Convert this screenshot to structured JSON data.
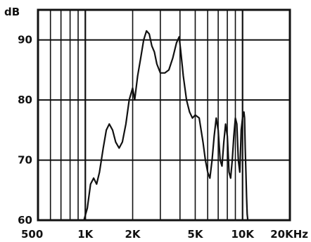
{
  "chart_data": {
    "type": "line",
    "title": "",
    "xlabel": "",
    "ylabel": "",
    "x_scale": "log",
    "xlim": [
      500,
      20000
    ],
    "ylim": [
      60,
      95
    ],
    "grid": true,
    "legend": "none",
    "y_unit": "dB",
    "y_ticks": [
      60,
      70,
      80,
      90
    ],
    "x_ticks": [
      {
        "value": 500,
        "label": "500"
      },
      {
        "value": 1000,
        "label": "1K"
      },
      {
        "value": 2000,
        "label": "2K"
      },
      {
        "value": 5000,
        "label": "5K"
      },
      {
        "value": 10000,
        "label": "10K"
      },
      {
        "value": 20000,
        "label": "20KHz"
      }
    ],
    "colors": {
      "line": "#111111",
      "grid": "#111111",
      "background": "#ffffff"
    },
    "series": [
      {
        "x": [
          980,
          1030,
          1080,
          1130,
          1180,
          1230,
          1300,
          1360,
          1420,
          1490,
          1560,
          1640,
          1720,
          1810,
          1900,
          2000,
          2060,
          2150,
          2250,
          2350,
          2450,
          2550,
          2650,
          2750,
          2850,
          3000,
          3200,
          3400,
          3600,
          3800,
          3950,
          4050,
          4200,
          4400,
          4600,
          4800,
          5000,
          5300,
          5600,
          5800,
          6000,
          6200,
          6400,
          6600,
          6800,
          7000,
          7200,
          7400,
          7600,
          7800,
          8000,
          8200,
          8400,
          8600,
          8800,
          9000,
          9200,
          9400,
          9600,
          9800,
          10000,
          10200,
          10300,
          10400,
          10500,
          10600,
          10700,
          10800
        ],
        "values": [
          60,
          62,
          66,
          67,
          66,
          68,
          72,
          75,
          76,
          75,
          73,
          72,
          73,
          76,
          80,
          82,
          80,
          84,
          87,
          90,
          91.5,
          91,
          89,
          88,
          86,
          84.5,
          84.5,
          85,
          87,
          89.5,
          90.5,
          88,
          84,
          80,
          78,
          77,
          77.5,
          77,
          73,
          70,
          68,
          67,
          70,
          74,
          77,
          75,
          70,
          69,
          73,
          76,
          74,
          68,
          67,
          70,
          74,
          77,
          76,
          70,
          68,
          75,
          77,
          78,
          77,
          72,
          68,
          64,
          61,
          60
        ]
      }
    ]
  }
}
